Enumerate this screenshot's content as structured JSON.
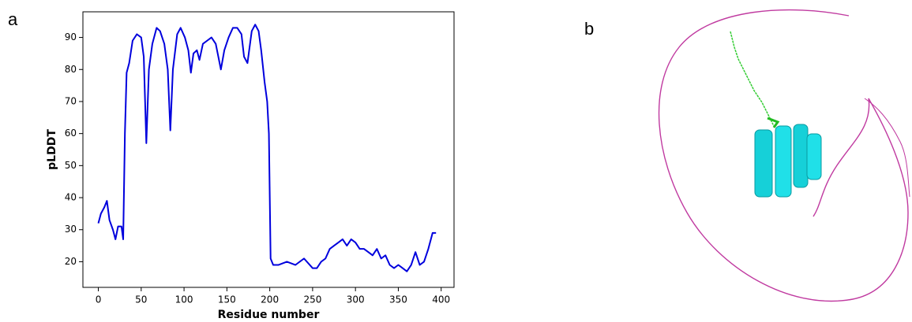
{
  "panel_labels": [
    "a",
    "b"
  ],
  "chart_data": {
    "type": "line",
    "xlabel": "Residue number",
    "ylabel": "pLDDT",
    "color": "#0000dd",
    "x": [
      0,
      3,
      7,
      10,
      13,
      17,
      20,
      23,
      27,
      29,
      31,
      33,
      36,
      40,
      45,
      50,
      53,
      56,
      59,
      63,
      68,
      72,
      77,
      81,
      84,
      87,
      92,
      96,
      101,
      105,
      108,
      111,
      115,
      118,
      122,
      127,
      132,
      137,
      140,
      143,
      147,
      152,
      157,
      162,
      167,
      170,
      174,
      179,
      183,
      187,
      190,
      194,
      197,
      199,
      201,
      204,
      210,
      220,
      230,
      240,
      250,
      255,
      260,
      265,
      270,
      275,
      280,
      285,
      290,
      295,
      300,
      305,
      310,
      315,
      320,
      325,
      330,
      335,
      340,
      345,
      350,
      355,
      360,
      365,
      370,
      375,
      380,
      385,
      390,
      394
    ],
    "values": [
      32,
      35,
      37,
      39,
      33,
      30,
      27,
      31,
      31,
      27,
      60,
      79,
      82,
      89,
      91,
      90,
      84,
      57,
      80,
      88,
      93,
      92,
      88,
      80,
      61,
      80,
      91,
      93,
      90,
      86,
      79,
      85,
      86,
      83,
      88,
      89,
      90,
      88,
      84,
      80,
      86,
      90,
      93,
      93,
      91,
      84,
      82,
      92,
      94,
      92,
      86,
      76,
      70,
      60,
      21,
      19,
      19,
      20,
      19,
      21,
      18,
      18,
      20,
      21,
      24,
      25,
      26,
      27,
      25,
      27,
      26,
      24,
      24,
      23,
      22,
      24,
      21,
      22,
      19,
      18,
      19,
      18,
      17,
      19,
      23,
      19,
      20,
      24,
      29,
      29
    ],
    "xlim": [
      -18,
      415
    ],
    "ylim": [
      12,
      98
    ],
    "xticks": [
      0,
      50,
      100,
      150,
      200,
      250,
      300,
      350,
      400
    ],
    "yticks": [
      20,
      30,
      40,
      50,
      60,
      70,
      80,
      90
    ]
  }
}
